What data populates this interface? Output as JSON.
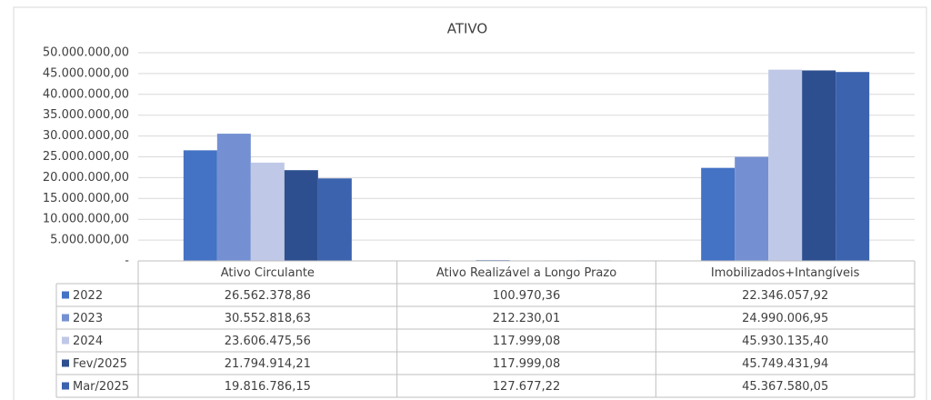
{
  "chart_data": {
    "type": "bar",
    "title": "ATIVO",
    "categories": [
      "Ativo Circulante",
      "Ativo Realizável a Longo Prazo",
      "Imobilizados+Intangíveis"
    ],
    "series": [
      {
        "name": "2022",
        "color": "#4472c4",
        "values": [
          26562378.86,
          100970.36,
          22346057.92
        ],
        "value_labels": [
          "26.562.378,86",
          "100.970,36",
          "22.346.057,92"
        ]
      },
      {
        "name": "2023",
        "color": "#7590d2",
        "values": [
          30552818.63,
          212230.01,
          24990006.95
        ],
        "value_labels": [
          "30.552.818,63",
          "212.230,01",
          "24.990.006,95"
        ]
      },
      {
        "name": "2024",
        "color": "#bfc8e6",
        "values": [
          23606475.56,
          117999.08,
          45930135.4
        ],
        "value_labels": [
          "23.606.475,56",
          "117.999,08",
          "45.930.135,40"
        ]
      },
      {
        "name": "Fev/2025",
        "color": "#2e4f8f",
        "values": [
          21794914.21,
          117999.08,
          45749431.94
        ],
        "value_labels": [
          "21.794.914,21",
          "117.999,08",
          "45.749.431,94"
        ]
      },
      {
        "name": "Mar/2025",
        "color": "#3b63ae",
        "values": [
          19816786.15,
          127677.22,
          45367580.05
        ],
        "value_labels": [
          "19.816.786,15",
          "127.677,22",
          "45.367.580,05"
        ]
      }
    ],
    "ylim": [
      0,
      50000000
    ],
    "yticks": [
      {
        "value": 0,
        "label": "-"
      },
      {
        "value": 5000000,
        "label": "5.000.000,00"
      },
      {
        "value": 10000000,
        "label": "10.000.000,00"
      },
      {
        "value": 15000000,
        "label": "15.000.000,00"
      },
      {
        "value": 20000000,
        "label": "20.000.000,00"
      },
      {
        "value": 25000000,
        "label": "25.000.000,00"
      },
      {
        "value": 30000000,
        "label": "30.000.000,00"
      },
      {
        "value": 35000000,
        "label": "35.000.000,00"
      },
      {
        "value": 40000000,
        "label": "40.000.000,00"
      },
      {
        "value": 45000000,
        "label": "45.000.000,00"
      },
      {
        "value": 50000000,
        "label": "50.000.000,00"
      }
    ],
    "grid": true
  }
}
